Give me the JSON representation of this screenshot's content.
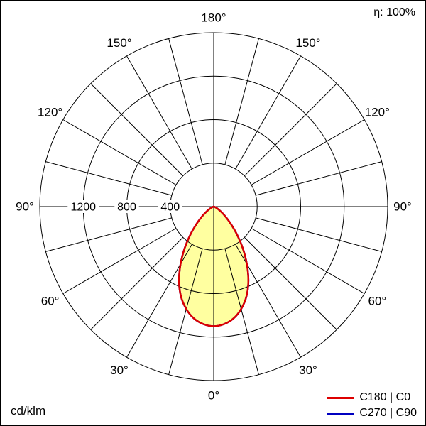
{
  "meta": {
    "efficiency_label": "η: 100%",
    "units_label": "cd/klm"
  },
  "chart_data": {
    "type": "line",
    "coordinate_system": "polar",
    "description": "Luminous intensity distribution curve (photometric polar diagram), 0° at bottom (nadir), values in cd/klm",
    "units_label": "cd/klm",
    "efficiency": "η: 100%",
    "grid": true,
    "radial_axis": {
      "unit": "cd/klm",
      "rings": [
        400,
        800,
        1200,
        1600
      ],
      "max": 1600,
      "ring_labels": [
        {
          "value": 400,
          "label": "400"
        },
        {
          "value": 800,
          "label": "800"
        },
        {
          "value": 1200,
          "label": "1200"
        }
      ]
    },
    "angular_axis": {
      "zero_position": "bottom",
      "spoke_step_deg": 15,
      "label_step_deg": 30,
      "labels": [
        {
          "deg": 0,
          "label": "0°"
        },
        {
          "deg": 30,
          "label": "30°"
        },
        {
          "deg": 60,
          "label": "60°"
        },
        {
          "deg": 90,
          "label": "90°"
        },
        {
          "deg": 120,
          "label": "120°"
        },
        {
          "deg": 150,
          "label": "150°"
        },
        {
          "deg": 180,
          "label": "180°"
        }
      ]
    },
    "series": [
      {
        "name": "C180 | C0",
        "color": "#dd0000",
        "fill_color": "#ffffa0",
        "gamma_deg": [
          0,
          5,
          10,
          15,
          20,
          25,
          30,
          35,
          40,
          45,
          50,
          55,
          60,
          65,
          70,
          75,
          80,
          85,
          90
        ],
        "values": [
          1100,
          1085,
          1045,
          975,
          880,
          755,
          610,
          465,
          330,
          220,
          140,
          85,
          48,
          27,
          14,
          7,
          3,
          1,
          0
        ]
      },
      {
        "name": "C270 | C90",
        "color": "#0000c0",
        "fill_color": null,
        "gamma_deg": [
          0,
          5,
          10,
          15,
          20,
          25,
          30,
          35,
          40,
          45,
          50,
          55,
          60,
          65,
          70,
          75,
          80,
          85,
          90
        ],
        "values": [
          1100,
          1085,
          1045,
          975,
          880,
          755,
          610,
          465,
          330,
          220,
          140,
          85,
          48,
          27,
          14,
          7,
          3,
          1,
          0
        ]
      }
    ],
    "legend": [
      {
        "label": "C180 | C0",
        "color": "#dd0000"
      },
      {
        "label": "C270 | C90",
        "color": "#0000c0"
      }
    ],
    "colors": {
      "grid": "#000000",
      "beam_fill": "#ffffa0",
      "c0_curve": "#dd0000",
      "c90_curve": "#0000c0"
    }
  }
}
